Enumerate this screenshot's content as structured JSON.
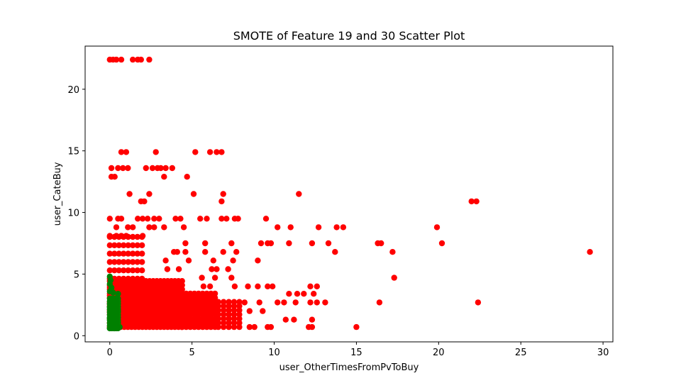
{
  "chart_data": {
    "type": "scatter",
    "title": "SMOTE of Feature 19 and 30 Scatter Plot",
    "xlabel": "user_OtherTimesFromPvToBuy",
    "ylabel": "user_CateBuy",
    "xlim": [
      -1.5,
      30.6
    ],
    "ylim": [
      -0.5,
      23.5
    ],
    "xticks": [
      0,
      5,
      10,
      15,
      20,
      25,
      30
    ],
    "yticks": [
      0,
      5,
      10,
      15,
      20
    ],
    "grid": false,
    "legend": "none",
    "series": [
      {
        "color": "#ff0000",
        "points": [
          [
            0.0,
            22.4
          ],
          [
            0.2,
            22.4
          ],
          [
            0.4,
            22.4
          ],
          [
            0.7,
            22.4
          ],
          [
            1.4,
            22.4
          ],
          [
            1.7,
            22.4
          ],
          [
            1.9,
            22.4
          ],
          [
            2.4,
            22.4
          ],
          [
            0.7,
            14.9
          ],
          [
            1.0,
            14.9
          ],
          [
            2.8,
            14.9
          ],
          [
            5.2,
            14.9
          ],
          [
            6.1,
            14.9
          ],
          [
            6.5,
            14.9
          ],
          [
            6.8,
            14.9
          ],
          [
            0.1,
            13.6
          ],
          [
            0.5,
            13.6
          ],
          [
            0.8,
            13.6
          ],
          [
            1.1,
            13.6
          ],
          [
            2.2,
            13.6
          ],
          [
            2.6,
            13.6
          ],
          [
            2.9,
            13.6
          ],
          [
            3.1,
            13.6
          ],
          [
            3.4,
            13.6
          ],
          [
            3.8,
            13.6
          ],
          [
            0.1,
            12.9
          ],
          [
            0.3,
            12.9
          ],
          [
            3.3,
            12.9
          ],
          [
            4.7,
            12.9
          ],
          [
            1.2,
            11.5
          ],
          [
            2.4,
            11.5
          ],
          [
            5.1,
            11.5
          ],
          [
            6.9,
            11.5
          ],
          [
            11.5,
            11.5
          ],
          [
            1.9,
            10.9
          ],
          [
            2.1,
            10.9
          ],
          [
            6.8,
            10.9
          ],
          [
            22.0,
            10.9
          ],
          [
            22.3,
            10.9
          ],
          [
            0.0,
            9.5
          ],
          [
            0.5,
            9.5
          ],
          [
            0.7,
            9.5
          ],
          [
            1.7,
            9.5
          ],
          [
            2.0,
            9.5
          ],
          [
            2.3,
            9.5
          ],
          [
            2.7,
            9.5
          ],
          [
            3.0,
            9.5
          ],
          [
            4.0,
            9.5
          ],
          [
            4.3,
            9.5
          ],
          [
            5.5,
            9.5
          ],
          [
            5.9,
            9.5
          ],
          [
            6.8,
            9.5
          ],
          [
            7.1,
            9.5
          ],
          [
            7.6,
            9.5
          ],
          [
            7.8,
            9.5
          ],
          [
            9.5,
            9.5
          ],
          [
            0.4,
            8.8
          ],
          [
            1.1,
            8.8
          ],
          [
            1.4,
            8.8
          ],
          [
            2.4,
            8.8
          ],
          [
            2.7,
            8.8
          ],
          [
            3.3,
            8.8
          ],
          [
            4.5,
            8.8
          ],
          [
            10.2,
            8.8
          ],
          [
            11.0,
            8.8
          ],
          [
            12.7,
            8.8
          ],
          [
            13.8,
            8.8
          ],
          [
            14.2,
            8.8
          ],
          [
            19.9,
            8.8
          ],
          [
            0.0,
            8.1
          ],
          [
            0.4,
            8.1
          ],
          [
            0.7,
            8.1
          ],
          [
            1.0,
            8.1
          ],
          [
            2.0,
            8.1
          ],
          [
            4.6,
            7.5
          ],
          [
            5.8,
            7.5
          ],
          [
            7.4,
            7.5
          ],
          [
            9.2,
            7.5
          ],
          [
            9.6,
            7.5
          ],
          [
            9.8,
            7.5
          ],
          [
            10.9,
            7.5
          ],
          [
            12.3,
            7.5
          ],
          [
            13.3,
            7.5
          ],
          [
            16.3,
            7.5
          ],
          [
            16.5,
            7.5
          ],
          [
            20.2,
            7.5
          ],
          [
            3.9,
            6.8
          ],
          [
            4.1,
            6.8
          ],
          [
            4.6,
            6.8
          ],
          [
            5.8,
            6.8
          ],
          [
            6.9,
            6.8
          ],
          [
            7.7,
            6.8
          ],
          [
            13.7,
            6.8
          ],
          [
            17.2,
            6.8
          ],
          [
            29.2,
            6.8
          ],
          [
            3.4,
            6.1
          ],
          [
            4.8,
            6.1
          ],
          [
            6.3,
            6.1
          ],
          [
            7.5,
            6.1
          ],
          [
            9.0,
            6.1
          ],
          [
            3.5,
            5.4
          ],
          [
            4.2,
            5.4
          ],
          [
            6.2,
            5.4
          ],
          [
            6.5,
            5.4
          ],
          [
            7.2,
            5.4
          ],
          [
            5.6,
            4.7
          ],
          [
            6.4,
            4.7
          ],
          [
            7.4,
            4.7
          ],
          [
            17.3,
            4.7
          ],
          [
            5.7,
            4.0
          ],
          [
            6.1,
            4.0
          ],
          [
            7.6,
            4.0
          ],
          [
            8.4,
            4.0
          ],
          [
            9.0,
            4.0
          ],
          [
            9.6,
            4.0
          ],
          [
            9.9,
            4.0
          ],
          [
            12.2,
            4.0
          ],
          [
            12.6,
            4.0
          ],
          [
            10.9,
            3.4
          ],
          [
            11.4,
            3.4
          ],
          [
            11.8,
            3.4
          ],
          [
            12.4,
            3.4
          ],
          [
            8.2,
            2.7
          ],
          [
            9.1,
            2.7
          ],
          [
            10.2,
            2.7
          ],
          [
            10.6,
            2.7
          ],
          [
            11.3,
            2.7
          ],
          [
            12.2,
            2.7
          ],
          [
            12.6,
            2.7
          ],
          [
            13.1,
            2.7
          ],
          [
            16.4,
            2.7
          ],
          [
            22.4,
            2.7
          ],
          [
            8.5,
            2.0
          ],
          [
            9.3,
            2.0
          ],
          [
            10.7,
            1.3
          ],
          [
            11.2,
            1.3
          ],
          [
            12.3,
            1.3
          ],
          [
            8.5,
            0.7
          ],
          [
            8.8,
            0.7
          ],
          [
            9.6,
            0.7
          ],
          [
            9.8,
            0.7
          ],
          [
            12.1,
            0.7
          ],
          [
            12.3,
            0.7
          ],
          [
            15.0,
            0.7
          ]
        ],
        "dense_regions": [
          {
            "x": [
              0.0,
              2.0
            ],
            "y": [
              1.9,
              8.1
            ],
            "step_x": 0.28,
            "step_y": 0.68
          },
          {
            "x": [
              0.0,
              4.4
            ],
            "y": [
              0.7,
              4.7
            ],
            "step_x": 0.22,
            "step_y": 0.34
          },
          {
            "x": [
              4.4,
              6.6
            ],
            "y": [
              0.7,
              3.7
            ],
            "step_x": 0.25,
            "step_y": 0.34
          },
          {
            "x": [
              6.6,
              8.0
            ],
            "y": [
              0.7,
              3.0
            ],
            "step_x": 0.32,
            "step_y": 0.34
          }
        ]
      },
      {
        "color": "#008000",
        "points": [
          [
            0.0,
            4.8
          ],
          [
            0.05,
            4.5
          ],
          [
            0.0,
            4.2
          ],
          [
            0.1,
            3.9
          ],
          [
            0.0,
            3.6
          ],
          [
            0.2,
            3.5
          ],
          [
            0.5,
            3.4
          ],
          [
            0.4,
            3.0
          ],
          [
            0.1,
            2.7
          ],
          [
            0.3,
            2.6
          ],
          [
            0.0,
            2.3
          ],
          [
            0.2,
            2.1
          ],
          [
            0.5,
            2.0
          ],
          [
            0.1,
            1.8
          ],
          [
            0.3,
            1.6
          ],
          [
            0.0,
            1.4
          ],
          [
            0.2,
            1.2
          ],
          [
            0.5,
            1.1
          ],
          [
            0.1,
            0.9
          ],
          [
            0.4,
            0.8
          ],
          [
            0.6,
            0.7
          ],
          [
            0.3,
            0.6
          ],
          [
            0.0,
            0.6
          ]
        ],
        "dense_regions": [
          {
            "x": [
              0.0,
              0.5
            ],
            "y": [
              0.6,
              3.2
            ],
            "step_x": 0.1,
            "step_y": 0.22
          }
        ]
      }
    ]
  }
}
